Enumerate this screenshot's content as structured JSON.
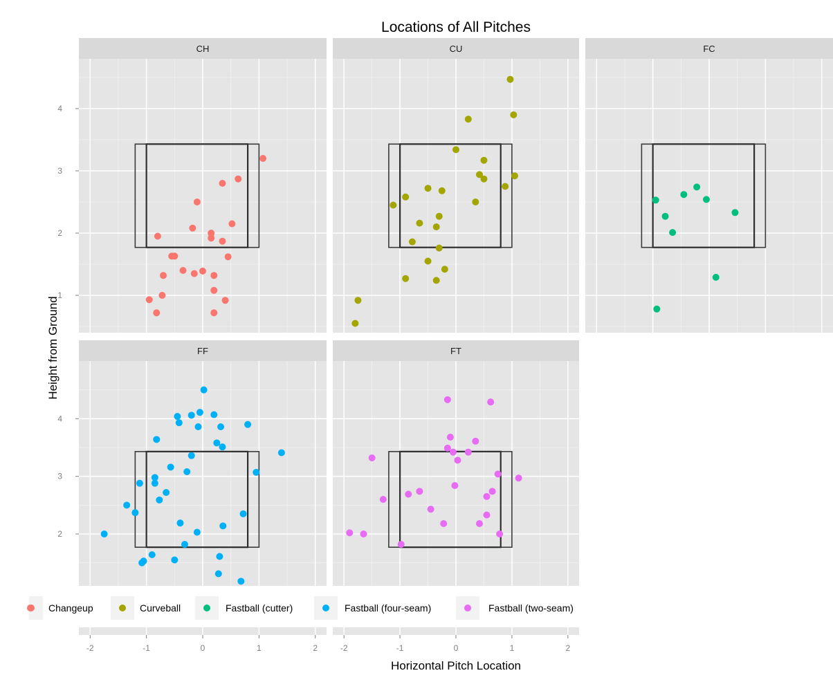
{
  "chart_data": {
    "type": "scatter",
    "title": "Locations of All Pitches",
    "xlabel": "Horizontal Pitch Location",
    "ylabel": "Height from Ground",
    "grid": true,
    "legend_position": "bottom",
    "xlim": [
      -2.2,
      2.2
    ],
    "ylim_top_row": [
      0.4,
      4.8
    ],
    "ylim_bottom_row": [
      1.1,
      5.0
    ],
    "x_ticks": [
      -2,
      -1,
      0,
      1,
      2
    ],
    "y_ticks_top_row": [
      1,
      2,
      3,
      4
    ],
    "y_ticks_bottom_row": [
      2,
      3,
      4
    ],
    "panels": [
      {
        "label": "CH",
        "series": "Changeup",
        "color": "#F8766D",
        "points": [
          [
            -0.8,
            1.95
          ],
          [
            -0.55,
            1.63
          ],
          [
            -0.5,
            1.63
          ],
          [
            -0.7,
            1.32
          ],
          [
            -0.95,
            0.93
          ],
          [
            -0.72,
            1.0
          ],
          [
            -0.82,
            0.72
          ],
          [
            -0.35,
            1.4
          ],
          [
            -0.15,
            1.35
          ],
          [
            -0.1,
            2.5
          ],
          [
            -0.18,
            2.08
          ],
          [
            0.0,
            1.39
          ],
          [
            0.15,
            2.0
          ],
          [
            0.15,
            1.92
          ],
          [
            0.2,
            1.32
          ],
          [
            0.2,
            1.08
          ],
          [
            0.2,
            0.72
          ],
          [
            0.35,
            1.87
          ],
          [
            0.4,
            0.92
          ],
          [
            0.35,
            2.8
          ],
          [
            0.45,
            1.62
          ],
          [
            0.52,
            2.15
          ],
          [
            0.63,
            2.87
          ],
          [
            1.07,
            3.2
          ]
        ]
      },
      {
        "label": "CU",
        "series": "Curveball",
        "color": "#A3A500",
        "points": [
          [
            -1.8,
            0.55
          ],
          [
            -1.75,
            0.92
          ],
          [
            -1.12,
            2.45
          ],
          [
            -0.9,
            2.58
          ],
          [
            -0.78,
            1.86
          ],
          [
            -0.9,
            1.27
          ],
          [
            -0.65,
            2.16
          ],
          [
            -0.5,
            2.72
          ],
          [
            -0.5,
            1.55
          ],
          [
            -0.35,
            1.24
          ],
          [
            -0.35,
            2.1
          ],
          [
            -0.3,
            2.27
          ],
          [
            -0.3,
            1.76
          ],
          [
            -0.25,
            2.68
          ],
          [
            -0.2,
            1.42
          ],
          [
            0.0,
            3.34
          ],
          [
            0.22,
            3.83
          ],
          [
            0.35,
            2.5
          ],
          [
            0.42,
            2.94
          ],
          [
            0.5,
            3.17
          ],
          [
            0.5,
            2.87
          ],
          [
            0.88,
            2.75
          ],
          [
            0.97,
            4.47
          ],
          [
            1.03,
            3.9
          ],
          [
            1.05,
            2.92
          ]
        ]
      },
      {
        "label": "FC",
        "series": "Fastball (cutter)",
        "color": "#00BF7D",
        "points": [
          [
            -0.95,
            2.53
          ],
          [
            -0.78,
            2.27
          ],
          [
            -0.65,
            2.01
          ],
          [
            -0.45,
            2.62
          ],
          [
            -0.22,
            2.74
          ],
          [
            -0.05,
            2.54
          ],
          [
            0.46,
            2.33
          ],
          [
            0.12,
            1.29
          ],
          [
            -0.93,
            0.78
          ]
        ]
      },
      {
        "label": "FF",
        "series": "Fastball (four-seam)",
        "color": "#00B0F6",
        "points": [
          [
            -1.75,
            2.0
          ],
          [
            -1.35,
            2.5
          ],
          [
            -1.2,
            2.37
          ],
          [
            -1.12,
            2.88
          ],
          [
            -1.08,
            1.5
          ],
          [
            -1.05,
            1.53
          ],
          [
            -0.9,
            1.64
          ],
          [
            -0.85,
            2.98
          ],
          [
            -0.85,
            2.88
          ],
          [
            -0.82,
            3.64
          ],
          [
            -0.77,
            2.59
          ],
          [
            -0.65,
            2.72
          ],
          [
            -0.57,
            3.16
          ],
          [
            -0.5,
            1.55
          ],
          [
            -0.45,
            4.04
          ],
          [
            -0.42,
            3.93
          ],
          [
            -0.4,
            2.19
          ],
          [
            -0.32,
            1.82
          ],
          [
            -0.28,
            3.08
          ],
          [
            -0.2,
            3.36
          ],
          [
            -0.2,
            4.06
          ],
          [
            -0.1,
            2.03
          ],
          [
            -0.08,
            3.86
          ],
          [
            -0.05,
            4.11
          ],
          [
            0.02,
            4.5
          ],
          [
            0.2,
            4.07
          ],
          [
            0.25,
            3.58
          ],
          [
            0.28,
            1.31
          ],
          [
            0.3,
            1.61
          ],
          [
            0.32,
            3.86
          ],
          [
            0.35,
            3.51
          ],
          [
            0.36,
            2.14
          ],
          [
            0.68,
            1.18
          ],
          [
            0.72,
            2.35
          ],
          [
            0.8,
            3.9
          ],
          [
            0.95,
            3.07
          ],
          [
            1.4,
            3.41
          ]
        ]
      },
      {
        "label": "FT",
        "series": "Fastball (two-seam)",
        "color": "#E76BF3",
        "points": [
          [
            -1.9,
            2.02
          ],
          [
            -1.65,
            2.0
          ],
          [
            -1.5,
            3.32
          ],
          [
            -1.3,
            2.6
          ],
          [
            -0.98,
            1.82
          ],
          [
            -0.85,
            2.69
          ],
          [
            -0.65,
            2.74
          ],
          [
            -0.45,
            2.43
          ],
          [
            -0.22,
            2.18
          ],
          [
            -0.15,
            4.33
          ],
          [
            -0.15,
            3.49
          ],
          [
            -0.1,
            3.68
          ],
          [
            -0.05,
            3.42
          ],
          [
            -0.02,
            2.84
          ],
          [
            0.03,
            3.28
          ],
          [
            0.22,
            3.42
          ],
          [
            0.35,
            3.61
          ],
          [
            0.42,
            2.18
          ],
          [
            0.55,
            2.65
          ],
          [
            0.55,
            2.33
          ],
          [
            0.62,
            4.29
          ],
          [
            0.65,
            2.74
          ],
          [
            0.75,
            3.04
          ],
          [
            0.78,
            2.0
          ],
          [
            1.12,
            2.97
          ]
        ]
      }
    ],
    "legend": [
      {
        "label": "Changeup",
        "color": "#F8766D"
      },
      {
        "label": "Curveball",
        "color": "#A3A500"
      },
      {
        "label": "Fastball (cutter)",
        "color": "#00BF7D"
      },
      {
        "label": "Fastball (four-seam)",
        "color": "#00B0F6"
      },
      {
        "label": "Fastball (two-seam)",
        "color": "#E76BF3"
      }
    ],
    "strike_zone_annotations": {
      "outer_box": {
        "x": [
          -1.2,
          1.0
        ],
        "y": [
          1.77,
          3.43
        ]
      },
      "inner_box": {
        "x": [
          -1.0,
          0.8
        ],
        "y": [
          1.77,
          3.43
        ]
      }
    }
  }
}
